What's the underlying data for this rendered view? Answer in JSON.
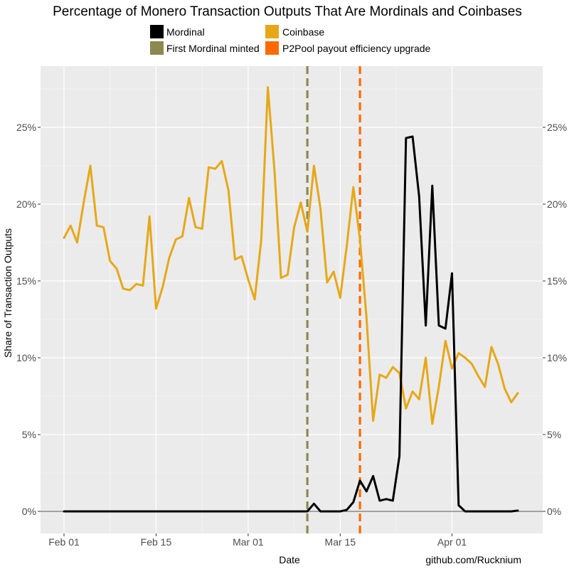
{
  "chart_data": {
    "type": "line",
    "title": "Percentage of Monero Transaction Outputs That Are Mordinals and Coinbases",
    "xlabel": "Date",
    "ylabel": "Share of Transaction Outputs",
    "caption": "github.com/Rucknium",
    "x_ticks": [
      "Feb 01",
      "Feb 15",
      "Mar 01",
      "Mar 15",
      "Apr 01"
    ],
    "y_ticks": [
      "0%",
      "5%",
      "10%",
      "15%",
      "20%",
      "25%"
    ],
    "ylim": [
      -0.013,
      0.29
    ],
    "grid": true,
    "legend_position": "top",
    "legend": [
      {
        "label": "Mordinal",
        "color": "#000000"
      },
      {
        "label": "Coinbase",
        "color": "#E6A817"
      },
      {
        "label": "First Mordinal minted",
        "color": "#8B8950"
      },
      {
        "label": "P2Pool payout efficiency upgrade",
        "color": "#FF6A00"
      }
    ],
    "x_start": "2023-02-01",
    "series": [
      {
        "name": "Coinbase",
        "color": "#E6A817",
        "values": [
          0.178,
          0.186,
          0.175,
          0.201,
          0.225,
          0.186,
          0.185,
          0.163,
          0.158,
          0.145,
          0.144,
          0.148,
          0.147,
          0.192,
          0.132,
          0.146,
          0.165,
          0.177,
          0.179,
          0.204,
          0.185,
          0.184,
          0.224,
          0.223,
          0.228,
          0.209,
          0.164,
          0.166,
          0.151,
          0.138,
          0.177,
          0.276,
          0.222,
          0.152,
          0.154,
          0.185,
          0.201,
          0.182,
          0.225,
          0.197,
          0.149,
          0.156,
          0.139,
          0.173,
          0.211,
          0.177,
          0.126,
          0.059,
          0.089,
          0.087,
          0.094,
          0.09,
          0.067,
          0.078,
          0.073,
          0.1,
          0.057,
          0.081,
          0.111,
          0.093,
          0.103,
          0.1,
          0.096,
          0.088,
          0.081,
          0.107,
          0.096,
          0.08,
          0.071,
          0.077
        ]
      },
      {
        "name": "Mordinal",
        "color": "#000000",
        "values": [
          0,
          0,
          0,
          0,
          0,
          0,
          0,
          0,
          0,
          0,
          0,
          0,
          0,
          0,
          0,
          0,
          0,
          0,
          0,
          0,
          0,
          0,
          0,
          0,
          0,
          0,
          0,
          0,
          0,
          0,
          0,
          0,
          0,
          0,
          0,
          0,
          0,
          0,
          0.005,
          0,
          0,
          0,
          0,
          0.001,
          0.006,
          0.02,
          0.013,
          0.023,
          0.007,
          0.008,
          0.007,
          0.036,
          0.243,
          0.244,
          0.205,
          0.121,
          0.212,
          0.121,
          0.119,
          0.155,
          0.004,
          0,
          0,
          0,
          0,
          0,
          0,
          0,
          0,
          0.0005
        ]
      }
    ],
    "vlines": [
      {
        "label": "First Mordinal minted",
        "date": "2023-03-10",
        "color": "#8B8950"
      },
      {
        "label": "P2Pool payout efficiency upgrade",
        "date": "2023-03-18",
        "color": "#FF6A00"
      }
    ]
  }
}
